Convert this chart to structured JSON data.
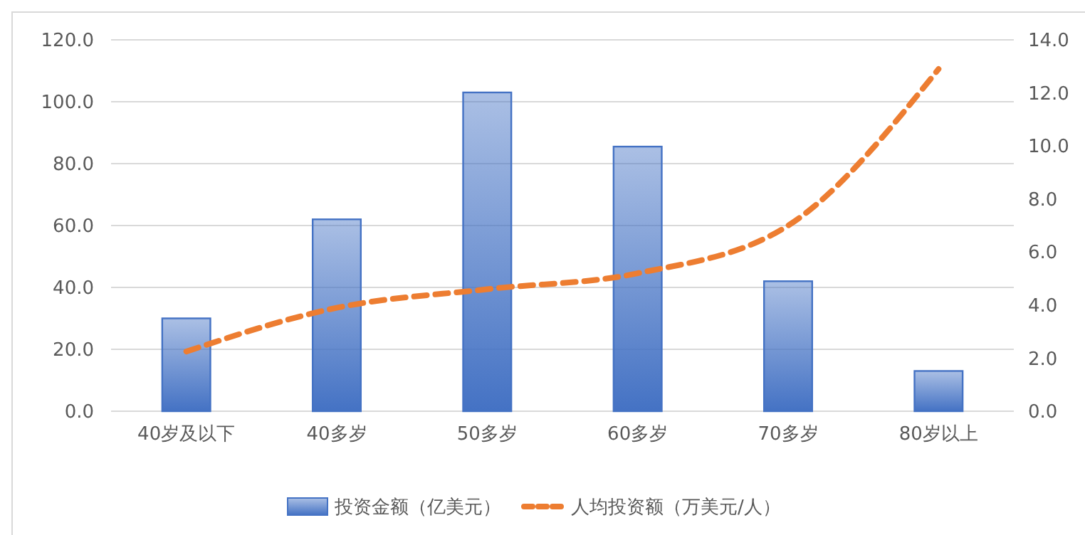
{
  "chart_data": {
    "type": "bar",
    "categories": [
      "40岁及以下",
      "40多岁",
      "50多岁",
      "60多岁",
      "70多岁",
      "80岁以上"
    ],
    "series": [
      {
        "name": "投资金额（亿美元）",
        "color": "#4472c4",
        "values": [
          30,
          62,
          103,
          85.5,
          42,
          13
        ]
      },
      {
        "name": "人均投资额（万美元/人）",
        "type": "line",
        "axis": "y2",
        "color": "#ed7d31",
        "line_style": "dashed",
        "values": [
          2.25,
          3.9,
          4.6,
          5.2,
          7.0,
          12.9
        ]
      }
    ],
    "ylim": [
      0,
      120
    ],
    "yticks": [
      {
        "value": 0,
        "label": "0.0"
      },
      {
        "value": 20,
        "label": "20.0"
      },
      {
        "value": 40,
        "label": "40.0"
      },
      {
        "value": 60,
        "label": "60.0"
      },
      {
        "value": 80,
        "label": "80.0"
      },
      {
        "value": 100,
        "label": "100.0"
      },
      {
        "value": 120,
        "label": "120.0"
      }
    ],
    "y2lim": [
      0,
      14
    ],
    "y2ticks": [
      {
        "value": 0,
        "label": "0.0"
      },
      {
        "value": 2,
        "label": "2.0"
      },
      {
        "value": 4,
        "label": "4.0"
      },
      {
        "value": 6,
        "label": "6.0"
      },
      {
        "value": 8,
        "label": "8.0"
      },
      {
        "value": 10,
        "label": "10.0"
      },
      {
        "value": 12,
        "label": "12.0"
      },
      {
        "value": 14,
        "label": "14.0"
      }
    ],
    "grid": "y",
    "legend": "bottom"
  }
}
